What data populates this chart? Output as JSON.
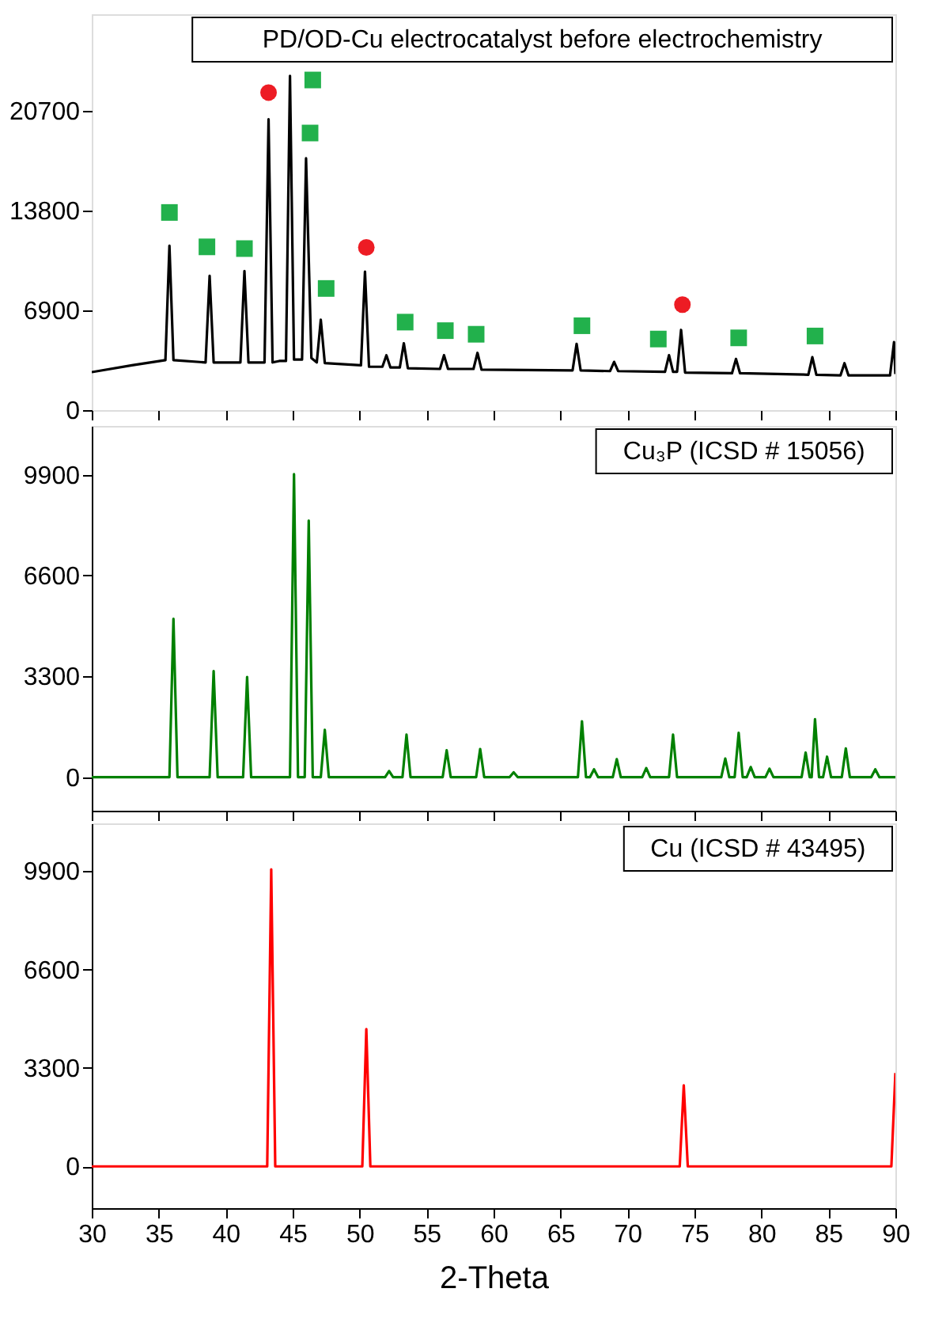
{
  "chart_data": [
    {
      "type": "line",
      "title": "PD/OD-Cu electrocatalyst before electrochemistry",
      "tick_labels": "y",
      "marker": "none",
      "line_style": "solid",
      "grid": false,
      "xlim": [
        30,
        90
      ],
      "ylim": [
        0,
        27400
      ],
      "xticks": [
        30,
        35,
        40,
        45,
        50,
        55,
        60,
        65,
        70,
        75,
        80,
        85,
        90
      ],
      "yticks": [
        0,
        6900,
        13800,
        20700
      ],
      "series": [
        {
          "color": "#000000",
          "x": [
            30,
            33,
            35.5,
            35.8,
            36.1,
            38.5,
            38.8,
            39.1,
            41.1,
            41.4,
            41.7,
            42.9,
            43.2,
            43.5,
            44.0,
            44.5,
            44.8,
            45.1,
            45.7,
            46.0,
            46.4,
            46.8,
            47.1,
            47.4,
            50.1,
            50.4,
            50.7,
            51.7,
            52.0,
            52.3,
            53.0,
            53.3,
            53.6,
            56.0,
            56.3,
            56.6,
            58.5,
            58.8,
            59.1,
            65.9,
            66.2,
            66.5,
            68.7,
            69.0,
            69.3,
            72.8,
            73.1,
            73.4,
            73.7,
            74.0,
            74.3,
            77.8,
            78.1,
            78.4,
            83.5,
            83.8,
            84.1,
            85.9,
            86.2,
            86.5,
            89.6,
            89.9,
            90
          ],
          "values": [
            2630,
            3100,
            3460,
            11380,
            3460,
            3300,
            9300,
            3300,
            3300,
            9630,
            3300,
            3300,
            20140,
            3300,
            3400,
            3400,
            23140,
            3500,
            3500,
            17430,
            3600,
            3300,
            6250,
            3250,
            3100,
            9590,
            3000,
            3000,
            3800,
            2950,
            2950,
            4630,
            2900,
            2850,
            3800,
            2850,
            2850,
            3960,
            2800,
            2750,
            4590,
            2750,
            2700,
            3340,
            2700,
            2650,
            3800,
            2650,
            2650,
            5550,
            2600,
            2550,
            3540,
            2550,
            2450,
            3670,
            2450,
            2400,
            3250,
            2400,
            2400,
            4710,
            2500
          ]
        },
        {
          "type": "scatter",
          "marker": "square",
          "color": "#22b14c",
          "x": [
            35.8,
            38.6,
            41.4,
            46.5,
            46.3,
            47.5,
            53.4,
            56.4,
            58.7,
            66.6,
            72.3,
            78.3,
            84.0
          ],
          "values": [
            13680,
            11300,
            11180,
            22850,
            19180,
            8420,
            6090,
            5500,
            5250,
            5840,
            4920,
            5000,
            5130
          ]
        },
        {
          "type": "scatter",
          "marker": "circle",
          "color": "#ed1c24",
          "x": [
            43.2,
            50.5,
            74.1
          ],
          "values": [
            21980,
            11260,
            7300
          ]
        }
      ]
    },
    {
      "type": "line",
      "title": "Cu₃P (ICSD # 15056)",
      "tick_labels": "y",
      "marker": "none",
      "line_style": "solid",
      "grid": false,
      "xlim": [
        30,
        90
      ],
      "ylim": [
        -1100,
        11500
      ],
      "xticks": [
        30,
        35,
        40,
        45,
        50,
        55,
        60,
        65,
        70,
        75,
        80,
        85,
        90
      ],
      "yticks": [
        0,
        3300,
        6600,
        9900
      ],
      "series": [
        {
          "color": "#008000",
          "x": [
            30,
            35.8,
            36.1,
            36.4,
            38.8,
            39.1,
            39.4,
            41.3,
            41.6,
            41.9,
            44.8,
            45.1,
            45.4,
            45.9,
            46.2,
            46.5,
            47.1,
            47.4,
            47.7,
            51.9,
            52.2,
            52.5,
            53.2,
            53.5,
            53.8,
            56.2,
            56.5,
            56.8,
            58.7,
            59.0,
            59.3,
            61.2,
            61.5,
            61.8,
            66.3,
            66.6,
            66.9,
            67.2,
            67.5,
            67.8,
            68.9,
            69.2,
            69.5,
            71.1,
            71.4,
            71.7,
            73.1,
            73.4,
            73.7,
            77.0,
            77.3,
            77.6,
            78.0,
            78.3,
            78.6,
            78.9,
            79.2,
            79.5,
            80.3,
            80.6,
            80.9,
            83.0,
            83.3,
            83.6,
            83.75,
            84.0,
            84.3,
            84.6,
            84.9,
            85.2,
            86.0,
            86.3,
            86.6,
            88.2,
            88.5,
            88.8,
            90
          ],
          "values": [
            0,
            0,
            5185,
            0,
            0,
            3476,
            0,
            0,
            3280,
            0,
            0,
            9920,
            0,
            0,
            8400,
            0,
            0,
            1550,
            0,
            0,
            200,
            0,
            0,
            1390,
            0,
            0,
            880,
            0,
            0,
            920,
            0,
            0,
            160,
            0,
            0,
            1830,
            0,
            0,
            255,
            0,
            0,
            590,
            0,
            0,
            295,
            0,
            0,
            1390,
            0,
            0,
            610,
            0,
            0,
            1450,
            0,
            0,
            330,
            0,
            0,
            275,
            0,
            0,
            805,
            0,
            0,
            1900,
            0,
            0,
            670,
            0,
            0,
            940,
            0,
            0,
            255,
            0,
            0
          ]
        }
      ]
    },
    {
      "type": "line",
      "title": "Cu (ICSD # 43495)",
      "xlabel": "2-Theta",
      "marker": "none",
      "line_style": "solid",
      "grid": false,
      "xlim": [
        30,
        90
      ],
      "ylim": [
        -1400,
        11500
      ],
      "xticks": [
        30,
        35,
        40,
        45,
        50,
        55,
        60,
        65,
        70,
        75,
        80,
        85,
        90
      ],
      "yticks": [
        0,
        3300,
        6600,
        9900
      ],
      "series": [
        {
          "color": "#ff0000",
          "x": [
            30,
            43.1,
            43.4,
            43.7,
            50.2,
            50.5,
            50.8,
            73.9,
            74.2,
            74.5,
            89.7,
            90
          ],
          "values": [
            0,
            0,
            9960,
            0,
            0,
            4605,
            0,
            0,
            2716,
            0,
            0,
            3130
          ]
        }
      ]
    }
  ]
}
